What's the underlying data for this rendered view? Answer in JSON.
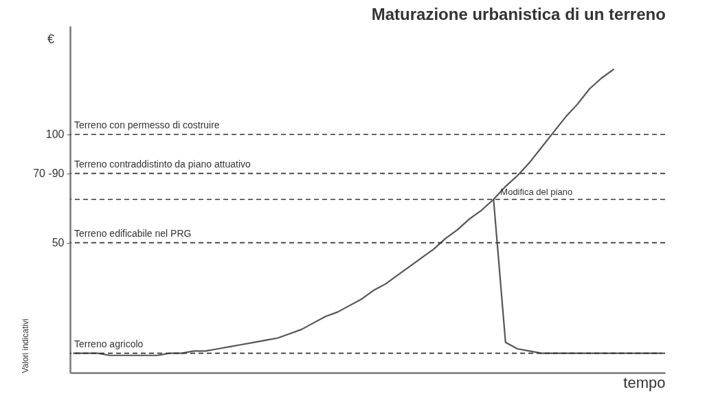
{
  "chart_data": {
    "type": "line",
    "title": "Maturazione urbanistica di un terreno",
    "xlabel": "tempo",
    "ylabel": "Valori indicativi",
    "categories": [
      null,
      null,
      null,
      null,
      null,
      null,
      null,
      null,
      null,
      null,
      null,
      null,
      null,
      null,
      null,
      null,
      null,
      null,
      null,
      null,
      null,
      null,
      null,
      null,
      null,
      null,
      null,
      null,
      null,
      null,
      null,
      null,
      null,
      null,
      null,
      null,
      null,
      null,
      null,
      null,
      null,
      null,
      null,
      null,
      null,
      null,
      null,
      null,
      null,
      null
    ],
    "ylim": [
      -10,
      150
    ],
    "yticks": [
      50,
      {
        "value": 82,
        "label": "70 -90"
      },
      100
    ],
    "tick_labels": "y",
    "grid": false,
    "series": [
      {
        "color": "#555555",
        "values": [
          -1,
          -1,
          -1,
          -2,
          -2,
          -2,
          -2,
          -2,
          -1,
          -1,
          0,
          0,
          1,
          2,
          3,
          4,
          5,
          6,
          8,
          10,
          13,
          16,
          18,
          21,
          24,
          28,
          31,
          35,
          39,
          43,
          47,
          52,
          56,
          61,
          65,
          70,
          76,
          81,
          87,
          94,
          101,
          108,
          114,
          121,
          126,
          130,
          null,
          null,
          null,
          null
        ]
      },
      {
        "color": "#555555",
        "values": [
          null,
          null,
          null,
          null,
          null,
          null,
          null,
          null,
          null,
          null,
          null,
          null,
          null,
          null,
          null,
          null,
          null,
          null,
          null,
          null,
          null,
          null,
          null,
          null,
          null,
          null,
          null,
          null,
          null,
          null,
          null,
          null,
          null,
          null,
          null,
          70,
          4,
          1,
          0,
          -1,
          -1,
          -1,
          -1,
          -1,
          -1,
          -1,
          -1,
          -1,
          -1,
          -1
        ]
      }
    ],
    "ref_lines": [
      {
        "axis": "y",
        "value": 100,
        "label": "Terreno con permesso di costruire",
        "color": "#333333",
        "line_style": "dashed"
      },
      {
        "axis": "y",
        "value": 82,
        "label": "Terreno contraddistinto da piano attuativo",
        "color": "#333333",
        "line_style": "dashed"
      },
      {
        "axis": "y",
        "value": 70,
        "color": "#333333",
        "line_style": "dashed"
      },
      {
        "axis": "y",
        "value": 50,
        "label": "Terreno edificabile nel PRG",
        "color": "#333333",
        "line_style": "dashed"
      },
      {
        "axis": "y",
        "value": -1,
        "label": "Terreno agricolo",
        "color": "#333333",
        "line_style": "dashed"
      }
    ],
    "annotations": [
      "€",
      {
        "text": "Modifica del piano",
        "y": 70
      }
    ]
  }
}
